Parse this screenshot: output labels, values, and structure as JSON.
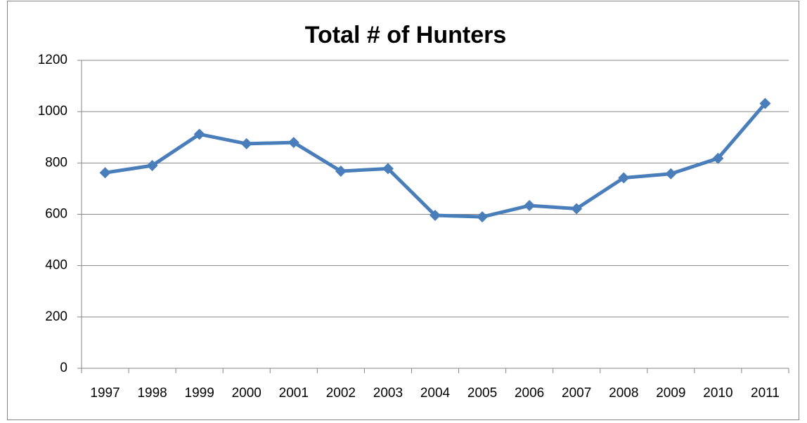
{
  "chart_data": {
    "type": "line",
    "title": "Total # of Hunters",
    "categories": [
      "1997",
      "1998",
      "1999",
      "2000",
      "2001",
      "2002",
      "2003",
      "2004",
      "2005",
      "2006",
      "2007",
      "2008",
      "2009",
      "2010",
      "2011"
    ],
    "values": [
      762,
      790,
      912,
      875,
      880,
      768,
      778,
      596,
      590,
      634,
      622,
      742,
      758,
      818,
      1032
    ],
    "color": "#4a7ebb",
    "ylim": [
      0,
      1200
    ],
    "yticks": [
      0,
      200,
      400,
      600,
      800,
      1000,
      1200
    ],
    "grid": true
  }
}
